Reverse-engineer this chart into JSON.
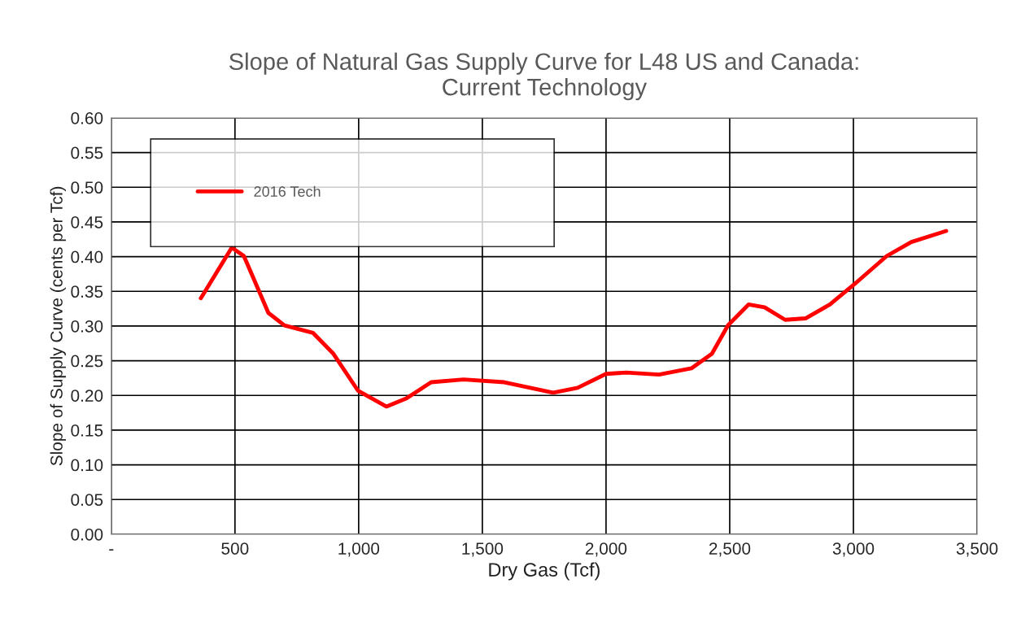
{
  "chart_data": {
    "type": "line",
    "title": "Slope of Natural Gas Supply Curve for L48 US and Canada:\nCurrent Technology",
    "xlabel": "Dry Gas (Tcf)",
    "ylabel": "Slope of Supply Curve (cents per Tcf)",
    "series": [
      {
        "name": "2016 Tech",
        "color": "#ff0000",
        "x": [
          362,
          487,
          536,
          635,
          700,
          816,
          898,
          997,
          1112,
          1194,
          1293,
          1424,
          1589,
          1786,
          1885,
          2000,
          2082,
          2214,
          2345,
          2428,
          2493,
          2576,
          2641,
          2724,
          2806,
          2905,
          3003,
          3135,
          3234,
          3375
        ],
        "values": [
          0.34,
          0.413,
          0.401,
          0.319,
          0.301,
          0.29,
          0.26,
          0.207,
          0.184,
          0.196,
          0.219,
          0.223,
          0.219,
          0.204,
          0.211,
          0.231,
          0.233,
          0.23,
          0.239,
          0.26,
          0.301,
          0.331,
          0.327,
          0.309,
          0.311,
          0.331,
          0.36,
          0.401,
          0.421,
          0.437
        ]
      }
    ],
    "xlim": [
      0,
      3500
    ],
    "xticks": [
      {
        "value": 0,
        "label": "-"
      },
      {
        "value": 500,
        "label": "500"
      },
      {
        "value": 1000,
        "label": "1,000"
      },
      {
        "value": 1500,
        "label": "1,500"
      },
      {
        "value": 2000,
        "label": "2,000"
      },
      {
        "value": 2500,
        "label": "2,500"
      },
      {
        "value": 3000,
        "label": "3,000"
      },
      {
        "value": 3500,
        "label": "3,500"
      }
    ],
    "ylim": [
      0,
      0.6
    ],
    "yticks": [
      {
        "value": 0,
        "label": "0.00"
      },
      {
        "value": 0.05,
        "label": "0.05"
      },
      {
        "value": 0.1,
        "label": "0.10"
      },
      {
        "value": 0.15,
        "label": "0.15"
      },
      {
        "value": 0.2,
        "label": "0.20"
      },
      {
        "value": 0.25,
        "label": "0.25"
      },
      {
        "value": 0.3,
        "label": "0.30"
      },
      {
        "value": 0.35,
        "label": "0.35"
      },
      {
        "value": 0.4,
        "label": "0.40"
      },
      {
        "value": 0.45,
        "label": "0.45"
      },
      {
        "value": 0.5,
        "label": "0.50"
      },
      {
        "value": 0.55,
        "label": "0.55"
      },
      {
        "value": 0.6,
        "label": "0.60"
      }
    ],
    "grid": true,
    "legend": "top left",
    "marker": "none",
    "line_style": "solid"
  }
}
